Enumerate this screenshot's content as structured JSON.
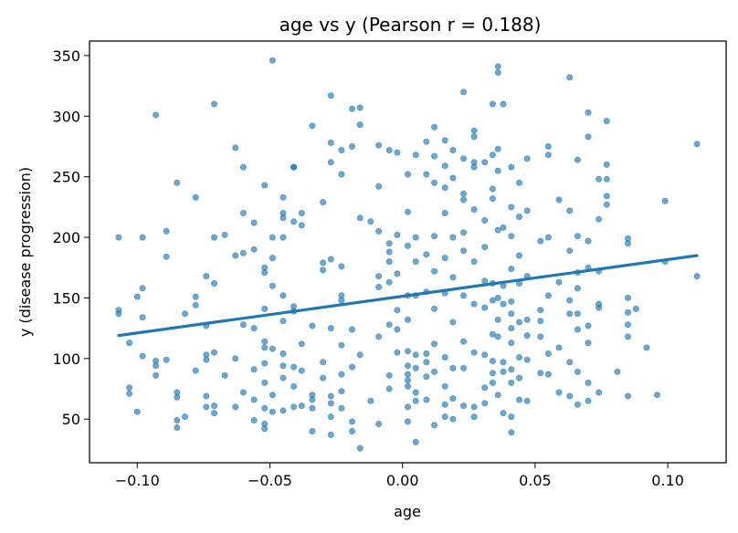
{
  "chart_data": {
    "type": "scatter",
    "title": "age vs y  (Pearson r = 0.188)",
    "xlabel": "age",
    "ylabel": "y (disease progression)",
    "xlim": [
      -0.118,
      0.122
    ],
    "ylim": [
      14,
      362
    ],
    "xticks": [
      -0.1,
      -0.05,
      0.0,
      0.05,
      0.1
    ],
    "xtick_labels": [
      "−0.10",
      "−0.05",
      "0.00",
      "0.05",
      "0.10"
    ],
    "yticks": [
      50,
      100,
      150,
      200,
      250,
      300,
      350
    ],
    "ytick_labels": [
      "50",
      "100",
      "150",
      "200",
      "250",
      "300",
      "350"
    ],
    "grid": false,
    "colors": {
      "points": "#1f77b4",
      "fit": "#1f77b4"
    },
    "fit_line": {
      "x": [
        -0.107,
        0.111
      ],
      "y": [
        119,
        185
      ]
    },
    "points": [
      [
        -0.107,
        200
      ],
      [
        -0.107,
        140
      ],
      [
        -0.107,
        137
      ],
      [
        -0.103,
        113
      ],
      [
        -0.103,
        76
      ],
      [
        -0.103,
        71
      ],
      [
        -0.1,
        151
      ],
      [
        -0.1,
        56
      ],
      [
        -0.098,
        134
      ],
      [
        -0.098,
        158
      ],
      [
        -0.098,
        102
      ],
      [
        -0.098,
        200
      ],
      [
        -0.093,
        301
      ],
      [
        -0.093,
        98
      ],
      [
        -0.093,
        94
      ],
      [
        -0.093,
        86
      ],
      [
        -0.089,
        205
      ],
      [
        -0.089,
        184
      ],
      [
        -0.089,
        99
      ],
      [
        -0.085,
        245
      ],
      [
        -0.085,
        72
      ],
      [
        -0.085,
        68
      ],
      [
        -0.085,
        49
      ],
      [
        -0.085,
        43
      ],
      [
        -0.082,
        137
      ],
      [
        -0.082,
        52
      ],
      [
        -0.078,
        233
      ],
      [
        -0.078,
        151
      ],
      [
        -0.078,
        144
      ],
      [
        -0.078,
        90
      ],
      [
        -0.074,
        168
      ],
      [
        -0.074,
        127
      ],
      [
        -0.074,
        103
      ],
      [
        -0.074,
        99
      ],
      [
        -0.074,
        69
      ],
      [
        -0.074,
        60
      ],
      [
        -0.071,
        310
      ],
      [
        -0.071,
        200
      ],
      [
        -0.071,
        162
      ],
      [
        -0.071,
        105
      ],
      [
        -0.071,
        61
      ],
      [
        -0.071,
        55
      ],
      [
        -0.067,
        86
      ],
      [
        -0.067,
        202
      ],
      [
        -0.063,
        274
      ],
      [
        -0.063,
        185
      ],
      [
        -0.063,
        100
      ],
      [
        -0.063,
        60
      ],
      [
        -0.06,
        258
      ],
      [
        -0.06,
        220
      ],
      [
        -0.06,
        187
      ],
      [
        -0.06,
        128
      ],
      [
        -0.06,
        72
      ],
      [
        -0.056,
        212
      ],
      [
        -0.056,
        190
      ],
      [
        -0.056,
        125
      ],
      [
        -0.056,
        91
      ],
      [
        -0.056,
        66
      ],
      [
        -0.056,
        49
      ],
      [
        -0.052,
        243
      ],
      [
        -0.052,
        175
      ],
      [
        -0.052,
        171
      ],
      [
        -0.052,
        141
      ],
      [
        -0.052,
        114
      ],
      [
        -0.052,
        109
      ],
      [
        -0.052,
        96
      ],
      [
        -0.052,
        80
      ],
      [
        -0.052,
        59
      ],
      [
        -0.052,
        46
      ],
      [
        -0.052,
        42
      ],
      [
        -0.049,
        346
      ],
      [
        -0.049,
        200
      ],
      [
        -0.049,
        183
      ],
      [
        -0.049,
        160
      ],
      [
        -0.049,
        108
      ],
      [
        -0.049,
        70
      ],
      [
        -0.049,
        56
      ],
      [
        -0.045,
        233
      ],
      [
        -0.045,
        220
      ],
      [
        -0.045,
        216
      ],
      [
        -0.045,
        200
      ],
      [
        -0.045,
        152
      ],
      [
        -0.045,
        131
      ],
      [
        -0.045,
        104
      ],
      [
        -0.045,
        94
      ],
      [
        -0.045,
        84
      ],
      [
        -0.045,
        57
      ],
      [
        -0.041,
        258
      ],
      [
        -0.041,
        258
      ],
      [
        -0.041,
        213
      ],
      [
        -0.041,
        143
      ],
      [
        -0.041,
        139
      ],
      [
        -0.041,
        93
      ],
      [
        -0.041,
        77
      ],
      [
        -0.041,
        60
      ],
      [
        -0.038,
        220
      ],
      [
        -0.038,
        210
      ],
      [
        -0.038,
        112
      ],
      [
        -0.038,
        90
      ],
      [
        -0.038,
        61
      ],
      [
        -0.034,
        292
      ],
      [
        -0.034,
        127
      ],
      [
        -0.034,
        70
      ],
      [
        -0.034,
        66
      ],
      [
        -0.034,
        59
      ],
      [
        -0.034,
        40
      ],
      [
        -0.03,
        229
      ],
      [
        -0.03,
        179
      ],
      [
        -0.03,
        173
      ],
      [
        -0.03,
        97
      ],
      [
        -0.03,
        84
      ],
      [
        -0.027,
        317
      ],
      [
        -0.027,
        278
      ],
      [
        -0.027,
        262
      ],
      [
        -0.027,
        182
      ],
      [
        -0.027,
        125
      ],
      [
        -0.027,
        69
      ],
      [
        -0.027,
        63
      ],
      [
        -0.027,
        52
      ],
      [
        -0.027,
        37
      ],
      [
        -0.023,
        272
      ],
      [
        -0.023,
        252
      ],
      [
        -0.023,
        176
      ],
      [
        -0.023,
        152
      ],
      [
        -0.023,
        148
      ],
      [
        -0.023,
        111
      ],
      [
        -0.023,
        87
      ],
      [
        -0.023,
        73
      ],
      [
        -0.023,
        59
      ],
      [
        -0.019,
        306
      ],
      [
        -0.019,
        275
      ],
      [
        -0.019,
        124
      ],
      [
        -0.019,
        93
      ],
      [
        -0.019,
        48
      ],
      [
        -0.019,
        40
      ],
      [
        -0.016,
        307
      ],
      [
        -0.016,
        293
      ],
      [
        -0.016,
        216
      ],
      [
        -0.016,
        103
      ],
      [
        -0.016,
        26
      ],
      [
        -0.012,
        213
      ],
      [
        -0.012,
        65
      ],
      [
        -0.009,
        276
      ],
      [
        -0.009,
        242
      ],
      [
        -0.009,
        205
      ],
      [
        -0.009,
        168
      ],
      [
        -0.009,
        159
      ],
      [
        -0.009,
        118
      ],
      [
        -0.009,
        46
      ],
      [
        -0.005,
        272
      ],
      [
        -0.005,
        195
      ],
      [
        -0.005,
        188
      ],
      [
        -0.005,
        180
      ],
      [
        -0.005,
        163
      ],
      [
        -0.005,
        128
      ],
      [
        -0.005,
        86
      ],
      [
        -0.005,
        75
      ],
      [
        -0.002,
        270
      ],
      [
        -0.002,
        202
      ],
      [
        -0.002,
        170
      ],
      [
        -0.002,
        140
      ],
      [
        -0.002,
        124
      ],
      [
        -0.002,
        105
      ],
      [
        0.002,
        252
      ],
      [
        0.002,
        221
      ],
      [
        0.002,
        193
      ],
      [
        0.002,
        152
      ],
      [
        0.002,
        132
      ],
      [
        0.002,
        106
      ],
      [
        0.002,
        94
      ],
      [
        0.002,
        87
      ],
      [
        0.002,
        82
      ],
      [
        0.002,
        77
      ],
      [
        0.002,
        60
      ],
      [
        0.002,
        48
      ],
      [
        0.005,
        268
      ],
      [
        0.005,
        200
      ],
      [
        0.005,
        180
      ],
      [
        0.005,
        152
      ],
      [
        0.005,
        103
      ],
      [
        0.005,
        92
      ],
      [
        0.005,
        72
      ],
      [
        0.005,
        65
      ],
      [
        0.005,
        31
      ],
      [
        0.009,
        279
      ],
      [
        0.009,
        252
      ],
      [
        0.009,
        186
      ],
      [
        0.009,
        155
      ],
      [
        0.009,
        104
      ],
      [
        0.009,
        97
      ],
      [
        0.009,
        85
      ],
      [
        0.009,
        66
      ],
      [
        0.012,
        291
      ],
      [
        0.012,
        267
      ],
      [
        0.012,
        245
      ],
      [
        0.012,
        201
      ],
      [
        0.012,
        172
      ],
      [
        0.012,
        141
      ],
      [
        0.012,
        112
      ],
      [
        0.012,
        89
      ],
      [
        0.012,
        45
      ],
      [
        0.016,
        280
      ],
      [
        0.016,
        259
      ],
      [
        0.016,
        241
      ],
      [
        0.016,
        220
      ],
      [
        0.016,
        183
      ],
      [
        0.016,
        154
      ],
      [
        0.016,
        101
      ],
      [
        0.016,
        77
      ],
      [
        0.016,
        62
      ],
      [
        0.016,
        52
      ],
      [
        0.019,
        272
      ],
      [
        0.019,
        249
      ],
      [
        0.019,
        200
      ],
      [
        0.019,
        167
      ],
      [
        0.019,
        130
      ],
      [
        0.019,
        92
      ],
      [
        0.019,
        67
      ],
      [
        0.019,
        50
      ],
      [
        0.023,
        320
      ],
      [
        0.023,
        265
      ],
      [
        0.023,
        236
      ],
      [
        0.023,
        231
      ],
      [
        0.023,
        204
      ],
      [
        0.023,
        189
      ],
      [
        0.023,
        152
      ],
      [
        0.023,
        114
      ],
      [
        0.023,
        92
      ],
      [
        0.023,
        61
      ],
      [
        0.027,
        288
      ],
      [
        0.027,
        283
      ],
      [
        0.027,
        262
      ],
      [
        0.027,
        258
      ],
      [
        0.027,
        223
      ],
      [
        0.027,
        180
      ],
      [
        0.027,
        145
      ],
      [
        0.027,
        105
      ],
      [
        0.027,
        60
      ],
      [
        0.027,
        52
      ],
      [
        0.031,
        262
      ],
      [
        0.031,
        214
      ],
      [
        0.031,
        192
      ],
      [
        0.031,
        164
      ],
      [
        0.031,
        142
      ],
      [
        0.031,
        103
      ],
      [
        0.031,
        76
      ],
      [
        0.031,
        63
      ],
      [
        0.034,
        310
      ],
      [
        0.034,
        268
      ],
      [
        0.034,
        240
      ],
      [
        0.034,
        232
      ],
      [
        0.034,
        162
      ],
      [
        0.034,
        148
      ],
      [
        0.034,
        120
      ],
      [
        0.034,
        98
      ],
      [
        0.034,
        88
      ],
      [
        0.034,
        80
      ],
      [
        0.036,
        341
      ],
      [
        0.036,
        336
      ],
      [
        0.036,
        273
      ],
      [
        0.036,
        255
      ],
      [
        0.036,
        206
      ],
      [
        0.036,
        150
      ],
      [
        0.036,
        132
      ],
      [
        0.036,
        118
      ],
      [
        0.036,
        70
      ],
      [
        0.038,
        310
      ],
      [
        0.038,
        208
      ],
      [
        0.038,
        160
      ],
      [
        0.038,
        145
      ],
      [
        0.038,
        97
      ],
      [
        0.038,
        89
      ],
      [
        0.038,
        55
      ],
      [
        0.041,
        258
      ],
      [
        0.041,
        225
      ],
      [
        0.041,
        201
      ],
      [
        0.041,
        174
      ],
      [
        0.041,
        147
      ],
      [
        0.041,
        137
      ],
      [
        0.041,
        125
      ],
      [
        0.041,
        113
      ],
      [
        0.041,
        91
      ],
      [
        0.041,
        80
      ],
      [
        0.041,
        52
      ],
      [
        0.041,
        39
      ],
      [
        0.044,
        245
      ],
      [
        0.044,
        217
      ],
      [
        0.044,
        185
      ],
      [
        0.044,
        162
      ],
      [
        0.044,
        130
      ],
      [
        0.044,
        101
      ],
      [
        0.044,
        84
      ],
      [
        0.044,
        66
      ],
      [
        0.047,
        265
      ],
      [
        0.047,
        222
      ],
      [
        0.047,
        168
      ],
      [
        0.047,
        132
      ],
      [
        0.047,
        119
      ],
      [
        0.047,
        99
      ],
      [
        0.047,
        65
      ],
      [
        0.052,
        197
      ],
      [
        0.052,
        140
      ],
      [
        0.052,
        131
      ],
      [
        0.052,
        118
      ],
      [
        0.052,
        88
      ],
      [
        0.055,
        275
      ],
      [
        0.055,
        268
      ],
      [
        0.055,
        200
      ],
      [
        0.055,
        152
      ],
      [
        0.055,
        104
      ],
      [
        0.055,
        87
      ],
      [
        0.059,
        231
      ],
      [
        0.059,
        163
      ],
      [
        0.059,
        109
      ],
      [
        0.059,
        72
      ],
      [
        0.063,
        332
      ],
      [
        0.063,
        222
      ],
      [
        0.063,
        189
      ],
      [
        0.063,
        148
      ],
      [
        0.063,
        137
      ],
      [
        0.063,
        97
      ],
      [
        0.063,
        69
      ],
      [
        0.066,
        264
      ],
      [
        0.066,
        201
      ],
      [
        0.066,
        171
      ],
      [
        0.066,
        158
      ],
      [
        0.066,
        137
      ],
      [
        0.066,
        124
      ],
      [
        0.066,
        89
      ],
      [
        0.066,
        62
      ],
      [
        0.07,
        303
      ],
      [
        0.07,
        283
      ],
      [
        0.07,
        197
      ],
      [
        0.07,
        175
      ],
      [
        0.07,
        127
      ],
      [
        0.07,
        113
      ],
      [
        0.07,
        80
      ],
      [
        0.07,
        65
      ],
      [
        0.074,
        248
      ],
      [
        0.074,
        215
      ],
      [
        0.074,
        172
      ],
      [
        0.074,
        145
      ],
      [
        0.074,
        142
      ],
      [
        0.074,
        72
      ],
      [
        0.077,
        296
      ],
      [
        0.077,
        260
      ],
      [
        0.077,
        248
      ],
      [
        0.077,
        234
      ],
      [
        0.077,
        227
      ],
      [
        0.081,
        89
      ],
      [
        0.085,
        199
      ],
      [
        0.085,
        195
      ],
      [
        0.085,
        150
      ],
      [
        0.085,
        138
      ],
      [
        0.085,
        128
      ],
      [
        0.085,
        118
      ],
      [
        0.085,
        69
      ],
      [
        0.088,
        141
      ],
      [
        0.092,
        109
      ],
      [
        0.096,
        70
      ],
      [
        0.099,
        230
      ],
      [
        0.099,
        180
      ],
      [
        0.111,
        277
      ],
      [
        0.111,
        168
      ]
    ]
  }
}
